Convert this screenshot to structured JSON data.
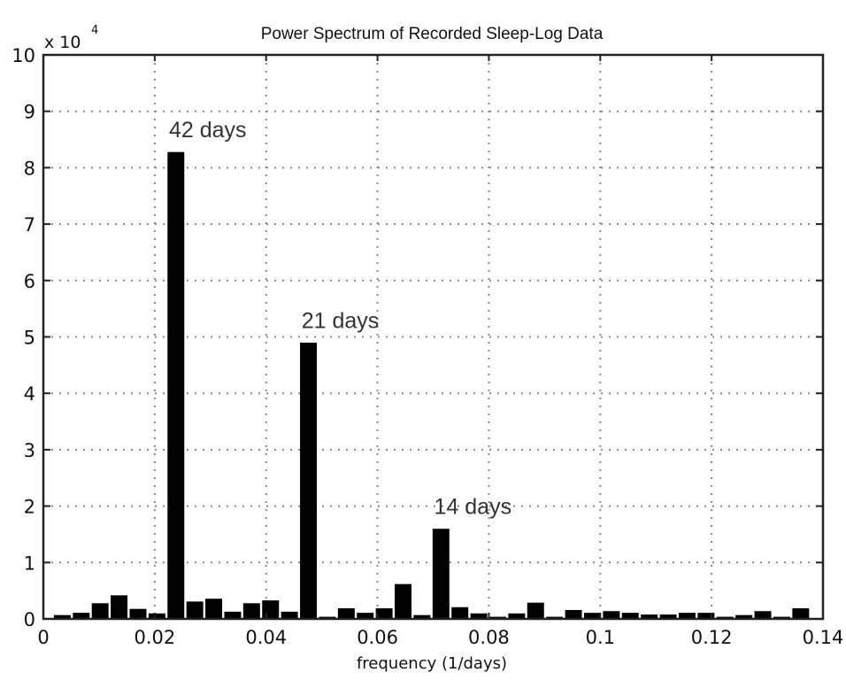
{
  "chart_data": {
    "type": "bar",
    "title": "Power Spectrum of Recorded Sleep-Log Data",
    "xlabel": "frequency (1/days)",
    "ylabel": "",
    "y_multiplier": "x 10^4",
    "y_multiplier_base": "x 10",
    "y_multiplier_exp": "4",
    "xlim": [
      0,
      0.14
    ],
    "ylim": [
      0,
      10
    ],
    "grid": true,
    "x_ticks": [
      0,
      0.02,
      0.04,
      0.06,
      0.08,
      0.1,
      0.12,
      0.14
    ],
    "x_tick_labels": [
      "0",
      "0.02",
      "0.04",
      "0.06",
      "0.08",
      "0.1",
      "0.12",
      "0.14"
    ],
    "y_ticks": [
      0,
      1,
      2,
      3,
      4,
      5,
      6,
      7,
      8,
      9,
      10
    ],
    "y_tick_labels": [
      "0",
      "1",
      "2",
      "3",
      "4",
      "5",
      "6",
      "7",
      "8",
      "9",
      "10"
    ],
    "bar_spacing": 0.0034,
    "bar_color": "#000000",
    "x": [
      0.0034,
      0.0068,
      0.0102,
      0.0136,
      0.017,
      0.0204,
      0.0238,
      0.0272,
      0.0306,
      0.034,
      0.0374,
      0.0408,
      0.0442,
      0.0476,
      0.051,
      0.0544,
      0.0578,
      0.0612,
      0.0646,
      0.068,
      0.0714,
      0.0748,
      0.0782,
      0.0816,
      0.085,
      0.0884,
      0.0918,
      0.0952,
      0.0986,
      0.102,
      0.1054,
      0.1088,
      0.1122,
      0.1156,
      0.119,
      0.1224,
      0.1258,
      0.1292,
      0.1326,
      0.136
    ],
    "values": [
      0.06,
      0.1,
      0.27,
      0.41,
      0.17,
      0.09,
      8.27,
      0.3,
      0.35,
      0.12,
      0.27,
      0.32,
      0.12,
      4.89,
      0.03,
      0.18,
      0.1,
      0.18,
      0.61,
      0.06,
      1.59,
      0.2,
      0.09,
      0.03,
      0.09,
      0.28,
      0.03,
      0.15,
      0.1,
      0.13,
      0.1,
      0.07,
      0.07,
      0.1,
      0.1,
      0.03,
      0.06,
      0.13,
      0.03,
      0.18
    ],
    "annotations": [
      {
        "text": "42 days",
        "x": 0.0238,
        "y": 8.27
      },
      {
        "text": "21 days",
        "x": 0.0476,
        "y": 4.89
      },
      {
        "text": "14 days",
        "x": 0.0714,
        "y": 1.59
      }
    ]
  }
}
